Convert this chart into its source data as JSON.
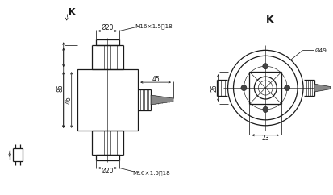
{
  "bg_color": "#ffffff",
  "line_color": "#1a1a1a",
  "dim_color": "#1a1a1a",
  "text_color": "#1a1a1a",
  "fig_width": 4.13,
  "fig_height": 2.42,
  "dpi": 100,
  "annotations": {
    "phi20_top": "Ø20",
    "m16_top": "M16×1.5深18",
    "phi20_bot": "Ø20",
    "m16_bot": "M16×1.5深18",
    "dim_86": "86",
    "dim_46": "46",
    "dim_45": "45",
    "dim_26": "26",
    "dim_23": "23",
    "phi49": "Ø49",
    "K_left": "K",
    "K_right": "K"
  }
}
